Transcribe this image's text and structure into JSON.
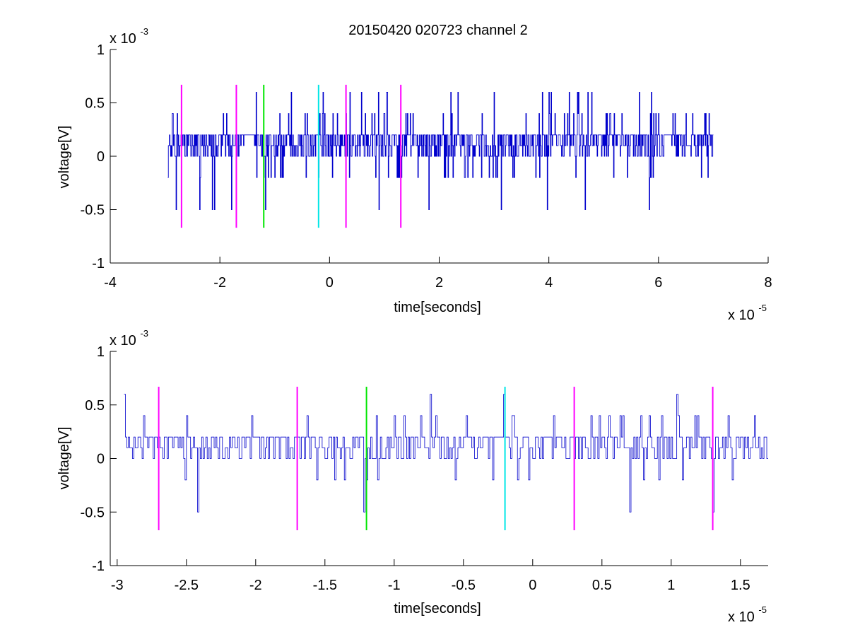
{
  "figure": {
    "title": "20150420 020723 channel 2"
  },
  "chart_data": [
    {
      "type": "line",
      "xlabel": "time[seconds]",
      "ylabel": "voltage[V]",
      "x_exponent_label": "x 10",
      "x_exponent_power": "-5",
      "y_exponent_label": "x 10",
      "y_exponent_power": "-3",
      "xlim": [
        -4e-05,
        8e-05
      ],
      "ylim": [
        -0.001,
        0.001
      ],
      "xticks": [
        -4e-05,
        -2e-05,
        0,
        2e-05,
        4e-05,
        6e-05,
        8e-05
      ],
      "xtick_labels": [
        "-4",
        "-2",
        "0",
        "2",
        "4",
        "6",
        "8"
      ],
      "yticks": [
        -0.001,
        -0.0005,
        0,
        0.0005,
        0.001
      ],
      "ytick_labels": [
        "-1",
        "-0.5",
        "0",
        "0.5",
        "1"
      ],
      "grid": false,
      "series": [
        {
          "color": "#0000cc",
          "sample_start": -2.95e-05,
          "sample_end": 7e-05,
          "sample_step": 1e-07
        }
      ],
      "markers": [
        {
          "x": -2.7e-05,
          "color": "#ff00ff",
          "ymin": -0.00067,
          "ymax": 0.00067
        },
        {
          "x": -1.7e-05,
          "color": "#ff00ff",
          "ymin": -0.00067,
          "ymax": 0.00067
        },
        {
          "x": -1.2e-05,
          "color": "#00e600",
          "ymin": -0.00067,
          "ymax": 0.00067
        },
        {
          "x": -2e-06,
          "color": "#00e6e6",
          "ymin": -0.00067,
          "ymax": 0.00067
        },
        {
          "x": 3e-06,
          "color": "#ff00ff",
          "ymin": -0.00067,
          "ymax": 0.00067
        },
        {
          "x": 1.3e-05,
          "color": "#ff00ff",
          "ymin": -0.00067,
          "ymax": 0.00067
        }
      ]
    },
    {
      "type": "line",
      "xlabel": "time[seconds]",
      "ylabel": "voltage[V]",
      "x_exponent_label": "x 10",
      "x_exponent_power": "-5",
      "y_exponent_label": "x 10",
      "y_exponent_power": "-3",
      "xlim": [
        -3.05e-05,
        1.7e-05
      ],
      "ylim": [
        -0.001,
        0.001
      ],
      "xticks": [
        -3e-05,
        -2.5e-05,
        -2e-05,
        -1.5e-05,
        -1e-05,
        -5e-06,
        0,
        5e-06,
        1e-05,
        1.5e-05
      ],
      "xtick_labels": [
        "-3",
        "-2.5",
        "-2",
        "-1.5",
        "-1",
        "-0.5",
        "0",
        "0.5",
        "1",
        "1.5"
      ],
      "yticks": [
        -0.001,
        -0.0005,
        0,
        0.0005,
        0.001
      ],
      "ytick_labels": [
        "-1",
        "-0.5",
        "0",
        "0.5",
        "1"
      ],
      "grid": false,
      "series": [
        {
          "color": "#0000cc",
          "sample_start": -2.95e-05,
          "sample_end": 1.7e-05,
          "sample_step": 1e-07
        }
      ],
      "markers": [
        {
          "x": -2.7e-05,
          "color": "#ff00ff",
          "ymin": -0.00067,
          "ymax": 0.00067
        },
        {
          "x": -1.7e-05,
          "color": "#ff00ff",
          "ymin": -0.00067,
          "ymax": 0.00067
        },
        {
          "x": -1.2e-05,
          "color": "#00e600",
          "ymin": -0.00067,
          "ymax": 0.00067
        },
        {
          "x": -2e-06,
          "color": "#00e6e6",
          "ymin": -0.00067,
          "ymax": 0.00067
        },
        {
          "x": 3e-06,
          "color": "#ff00ff",
          "ymin": -0.00067,
          "ymax": 0.00067
        },
        {
          "x": 1.3e-05,
          "color": "#ff00ff",
          "ymin": -0.00067,
          "ymax": 0.00067
        }
      ]
    }
  ]
}
